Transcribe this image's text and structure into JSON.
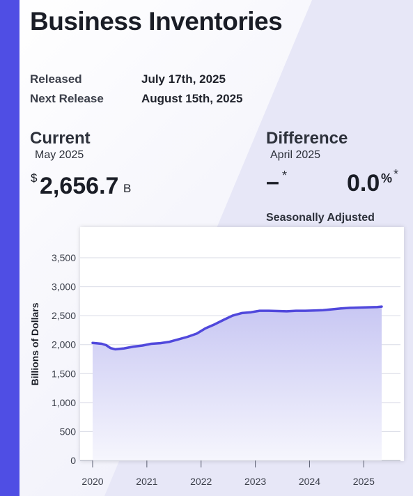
{
  "header": {
    "title": "Business Inventories",
    "released_label": "Released",
    "released_value": "July 17th, 2025",
    "next_label": "Next Release",
    "next_value": "August 15th, 2025"
  },
  "current": {
    "heading": "Current",
    "period": "May 2025",
    "currency": "$",
    "value": "2,656.7",
    "unit": "B"
  },
  "difference": {
    "heading": "Difference",
    "period": "April 2025",
    "change": "–",
    "change_note": "*",
    "percent": "0.0",
    "percent_sign": "%",
    "percent_note": "*",
    "adjustment": "Seasonally Adjusted"
  },
  "colors": {
    "accent": "#4f4ee4",
    "line": "#5048dc",
    "area_top": "#c8c7f3",
    "area_bottom": "#f6f6fd"
  },
  "chart_data": {
    "type": "area",
    "title": "",
    "xlabel": "",
    "ylabel": "Billions of Dollars",
    "xlim": [
      2020.0,
      2025.42
    ],
    "ylim": [
      0,
      3500
    ],
    "grid": true,
    "x_ticks": [
      "2020",
      "2021",
      "2022",
      "2023",
      "2024",
      "2025"
    ],
    "y_ticks": [
      "0",
      "500",
      "1,000",
      "1,500",
      "2,000",
      "2,500",
      "3,000",
      "3,500"
    ],
    "x": [
      2020.0,
      2020.17,
      2020.25,
      2020.33,
      2020.42,
      2020.58,
      2020.75,
      2020.92,
      2021.08,
      2021.25,
      2021.42,
      2021.58,
      2021.75,
      2021.92,
      2022.08,
      2022.25,
      2022.42,
      2022.58,
      2022.75,
      2022.92,
      2023.08,
      2023.25,
      2023.42,
      2023.58,
      2023.75,
      2023.92,
      2024.08,
      2024.25,
      2024.42,
      2024.58,
      2024.75,
      2024.92,
      2025.08,
      2025.25,
      2025.33
    ],
    "series": [
      {
        "values": [
          2030,
          2015,
          1990,
          1940,
          1920,
          1935,
          1965,
          1985,
          2015,
          2025,
          2050,
          2090,
          2135,
          2190,
          2280,
          2350,
          2430,
          2500,
          2545,
          2560,
          2585,
          2585,
          2580,
          2575,
          2585,
          2585,
          2590,
          2595,
          2610,
          2625,
          2635,
          2640,
          2645,
          2650,
          2656.7
        ]
      }
    ]
  }
}
